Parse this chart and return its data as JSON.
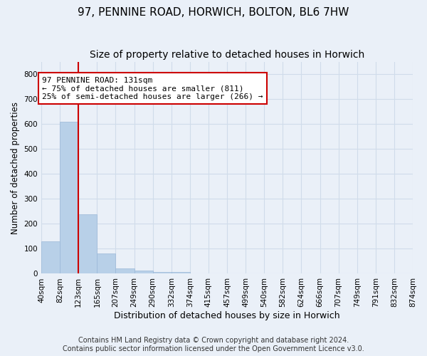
{
  "title": "97, PENNINE ROAD, HORWICH, BOLTON, BL6 7HW",
  "subtitle": "Size of property relative to detached houses in Horwich",
  "xlabel": "Distribution of detached houses by size in Horwich",
  "ylabel": "Number of detached properties",
  "bar_counts": [
    130,
    610,
    238,
    80,
    22,
    13,
    8,
    8,
    0,
    0,
    0,
    0,
    0,
    0,
    0,
    0,
    0,
    0,
    0,
    0
  ],
  "bin_labels": [
    "40sqm",
    "82sqm",
    "123sqm",
    "165sqm",
    "207sqm",
    "249sqm",
    "290sqm",
    "332sqm",
    "374sqm",
    "415sqm",
    "457sqm",
    "499sqm",
    "540sqm",
    "582sqm",
    "624sqm",
    "666sqm",
    "707sqm",
    "749sqm",
    "791sqm",
    "832sqm",
    "874sqm"
  ],
  "bar_color": "#b8d0e8",
  "bar_edge_color": "#9ab8d8",
  "grid_color": "#d0dcea",
  "background_color": "#eaf0f8",
  "annotation_box_text": "97 PENNINE ROAD: 131sqm\n← 75% of detached houses are smaller (811)\n25% of semi-detached houses are larger (266) →",
  "annotation_box_color": "#ffffff",
  "annotation_box_border": "#cc0000",
  "annotation_line_color": "#cc0000",
  "footer_line1": "Contains HM Land Registry data © Crown copyright and database right 2024.",
  "footer_line2": "Contains public sector information licensed under the Open Government Licence v3.0.",
  "ylim": [
    0,
    850
  ],
  "yticks": [
    0,
    100,
    200,
    300,
    400,
    500,
    600,
    700,
    800
  ],
  "title_fontsize": 11,
  "subtitle_fontsize": 10,
  "xlabel_fontsize": 9,
  "ylabel_fontsize": 8.5,
  "tick_fontsize": 7.5,
  "annot_fontsize": 8,
  "footer_fontsize": 7
}
